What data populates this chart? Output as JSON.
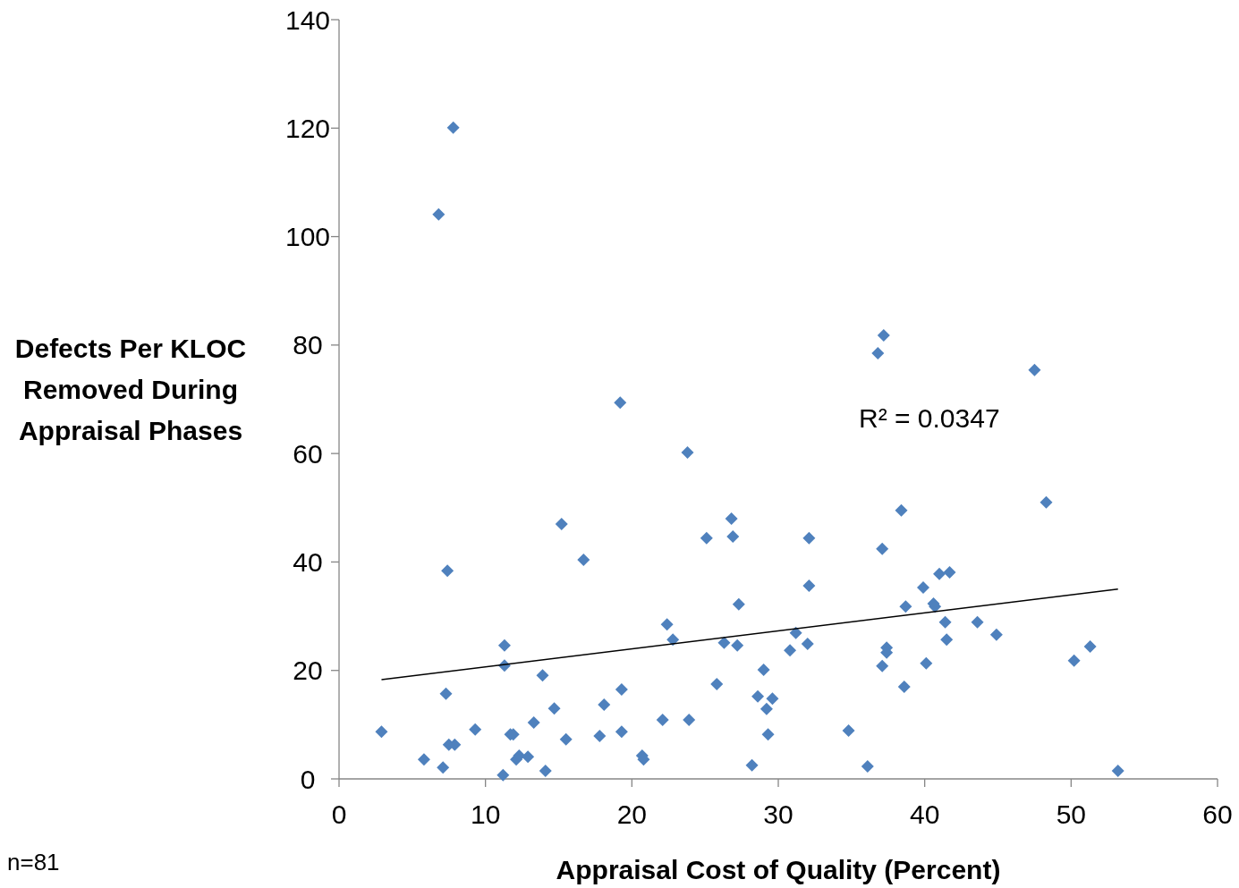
{
  "chart_data": {
    "type": "scatter",
    "xlabel": "Appraisal Cost of Quality (Percent)",
    "ylabel": "Defects Per KLOC\nRemoved During\nAppraisal Phases",
    "xlim": [
      0,
      60
    ],
    "ylim": [
      0,
      140
    ],
    "xticks": [
      0,
      10,
      20,
      30,
      40,
      50,
      60
    ],
    "yticks": [
      0,
      20,
      40,
      60,
      80,
      100,
      120,
      140
    ],
    "grid": false,
    "annotations": [
      "R² = 0.0347",
      "n=81"
    ],
    "series": [
      {
        "color": "#4f81bd",
        "marker": "diamond",
        "x": [
          2.9,
          5.8,
          6.8,
          7.8,
          7.1,
          7.3,
          7.4,
          7.5,
          7.9,
          9.3,
          11.2,
          11.3,
          11.3,
          11.7,
          11.9,
          12.1,
          12.3,
          12.9,
          13.3,
          13.9,
          14.1,
          14.7,
          15.2,
          15.5,
          16.7,
          17.8,
          18.1,
          19.2,
          19.3,
          19.3,
          20.7,
          20.8,
          22.1,
          22.4,
          22.8,
          23.8,
          23.9,
          25.1,
          25.8,
          26.3,
          26.8,
          26.9,
          27.2,
          27.3,
          28.2,
          28.6,
          29.0,
          29.2,
          29.3,
          29.6,
          30.8,
          31.2,
          32.0,
          32.1,
          32.1,
          34.8,
          36.1,
          36.8,
          37.2,
          37.1,
          37.1,
          37.4,
          37.4,
          38.4,
          38.6,
          38.7,
          39.9,
          40.1,
          40.6,
          40.7,
          41.0,
          41.4,
          41.5,
          41.7,
          43.6,
          44.9,
          47.5,
          48.3,
          50.2,
          51.3,
          53.2
        ],
        "values": [
          8.7,
          3.6,
          104.1,
          120.1,
          2.1,
          15.7,
          38.4,
          6.3,
          6.3,
          9.1,
          0.7,
          24.6,
          20.9,
          8.2,
          8.2,
          3.6,
          4.3,
          4.1,
          10.4,
          19.1,
          1.5,
          13.0,
          47.0,
          7.3,
          40.4,
          7.9,
          13.7,
          69.4,
          16.5,
          8.7,
          4.3,
          3.6,
          10.9,
          28.5,
          25.7,
          60.2,
          10.9,
          44.4,
          17.5,
          25.1,
          48.0,
          44.7,
          24.6,
          32.2,
          2.5,
          15.2,
          20.1,
          12.9,
          8.2,
          14.8,
          23.7,
          26.9,
          24.9,
          44.4,
          35.6,
          8.9,
          2.3,
          78.5,
          81.8,
          42.4,
          20.8,
          24.2,
          23.3,
          49.5,
          17.0,
          31.8,
          35.3,
          21.3,
          32.3,
          31.8,
          37.8,
          28.9,
          25.7,
          38.1,
          28.9,
          26.6,
          75.4,
          51.0,
          21.8,
          24.4,
          1.5
        ]
      },
      {
        "type": "line",
        "color": "#000000",
        "marker": "none",
        "x": [
          2.9,
          53.2
        ],
        "values": [
          18.3,
          35.0
        ]
      }
    ]
  }
}
